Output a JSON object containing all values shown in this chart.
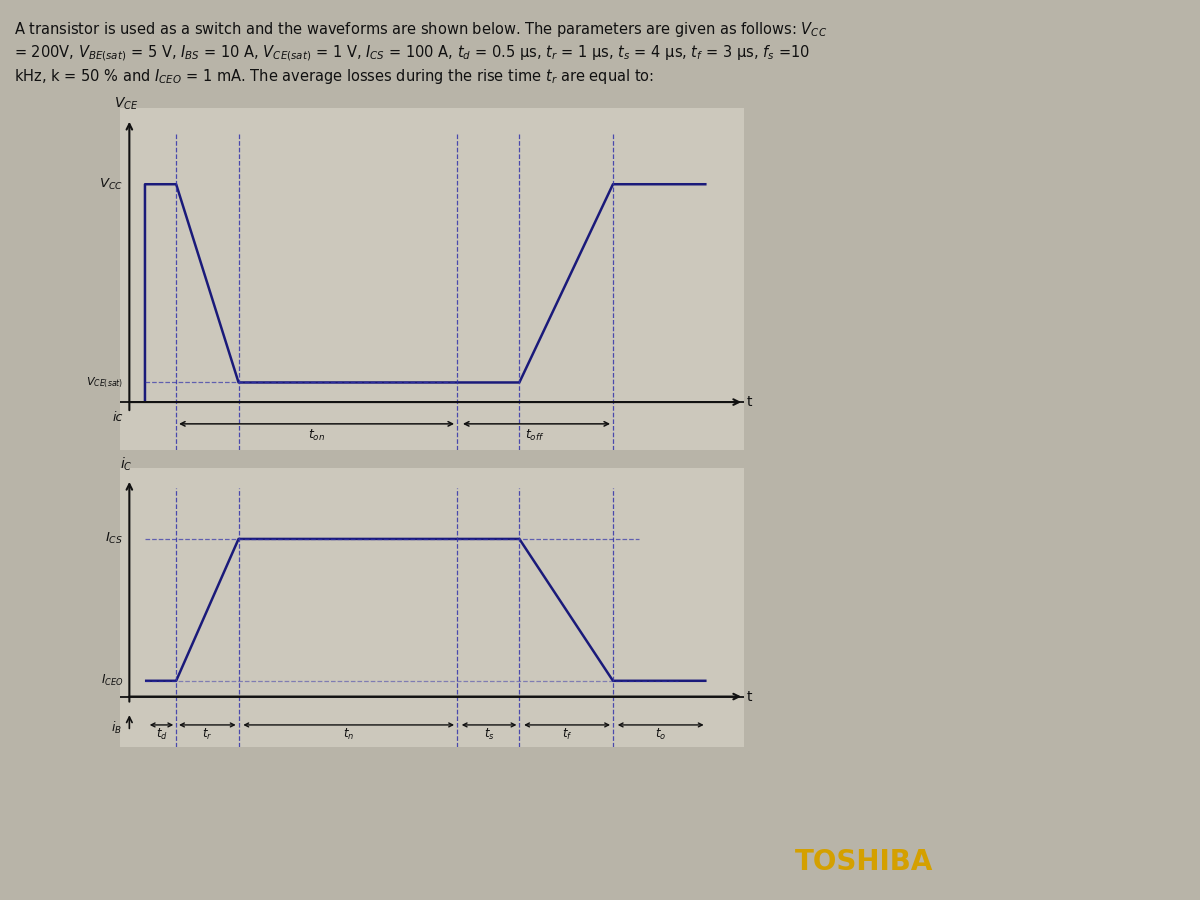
{
  "bg_color": "#b8b4a8",
  "plot_bg": "#ccc8bc",
  "waveform_color": "#1a1a7a",
  "axis_color": "#111111",
  "dashed_color": "#3333aa",
  "text_color": "#111111",
  "toshiba_color": "#d4a000",
  "toshiba_bg": "#1a1a1a",
  "bottom_bar_color": "#111111",
  "Vcc": 1.0,
  "Vsat": 0.09,
  "Ics": 1.0,
  "Iceo": 0.1,
  "td": 0.5,
  "tr": 1.0,
  "on_flat": 3.5,
  "ts": 1.0,
  "tf": 1.5,
  "to": 1.5,
  "header_line1": "A transistor is used as a switch and the waveforms are shown below. The parameters are given as follows: $V_{CC}$",
  "header_line2": "= 200V, $V_{BE(sat)}$ = 5 V, $I_{BS}$ = 10 A, $V_{CE(sat)}$ = 1 V, $I_{CS}$ = 100 A, $t_d$ = 0.5 µs, $t_r$ = 1 µs, $t_s$ = 4 µs, $t_f$ = 3 µs, $f_s$ =10",
  "header_line3": "kHz, k = 50 % and $I_{CEO}$ = 1 mA. The average losses during the rise time $t_r$ are equal to:"
}
